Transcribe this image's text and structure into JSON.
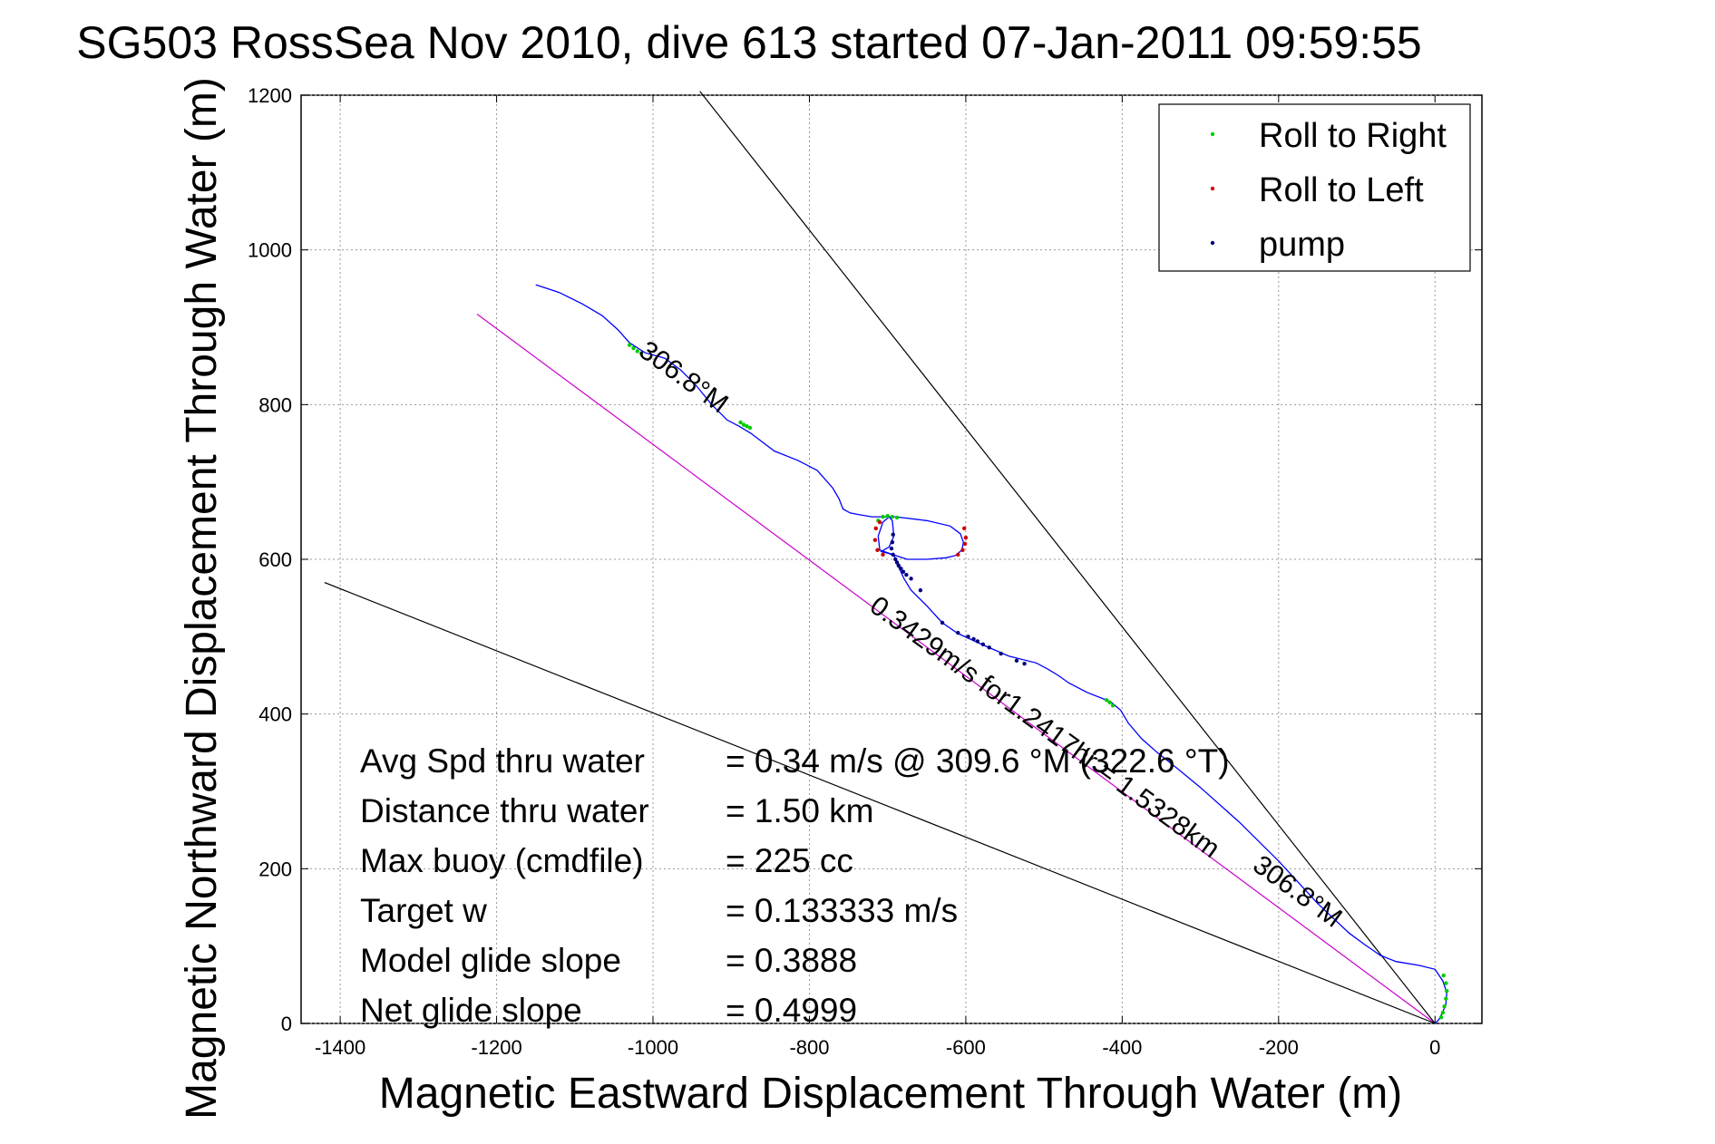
{
  "chart_data": {
    "type": "scatter",
    "title": "SG503 RossSea Nov 2010, dive 613 started 07-Jan-2011 09:59:55",
    "xlabel": "Magnetic Eastward Displacement Through Water (m)",
    "ylabel": "Magnetic Northward Displacement Through Water (m)",
    "xlim": [
      -1450,
      60
    ],
    "ylim": [
      0,
      1200
    ],
    "xticks": [
      -1400,
      -1200,
      -1000,
      -800,
      -600,
      -400,
      -200,
      0
    ],
    "yticks": [
      0,
      200,
      400,
      600,
      800,
      1000,
      1200
    ],
    "grid": true,
    "legend_position": "top-right",
    "legend": [
      {
        "label": "Roll to Right",
        "color": "#00cc00"
      },
      {
        "label": "Roll to Left",
        "color": "#cc0000"
      },
      {
        "label": "pump",
        "color": "#000080"
      }
    ],
    "track": {
      "color": "#0000ff",
      "x": [
        -1150,
        -1120,
        -1090,
        -1065,
        -1045,
        -1030,
        -1010,
        -985,
        -965,
        -945,
        -925,
        -905,
        -890,
        -875,
        -845,
        -815,
        -790,
        -770,
        -762,
        -757,
        -748,
        -738,
        -732,
        -720,
        -705,
        -690,
        -650,
        -620,
        -607,
        -603,
        -605,
        -613,
        -625,
        -650,
        -675,
        -690,
        -710,
        -712,
        -706,
        -698,
        -694,
        -692,
        -698,
        -705,
        -708,
        -700,
        -692,
        -686,
        -679,
        -670,
        -650,
        -630,
        -610,
        -575,
        -545,
        -510,
        -495,
        -482,
        -468,
        -445,
        -425,
        -415,
        -402,
        -392,
        -375,
        -355,
        -330,
        -300,
        -250,
        -200,
        -150,
        -110,
        -90,
        -80,
        -70,
        -50,
        -20,
        0,
        10,
        15,
        14,
        10,
        5,
        0
      ],
      "y": [
        955,
        945,
        930,
        915,
        897,
        880,
        867,
        860,
        845,
        825,
        800,
        780,
        772,
        763,
        740,
        728,
        715,
        692,
        678,
        665,
        660,
        658,
        657,
        655,
        655,
        655,
        650,
        643,
        633,
        622,
        612,
        605,
        602,
        600,
        600,
        605,
        612,
        630,
        648,
        655,
        650,
        630,
        616,
        612,
        610,
        608,
        605,
        590,
        575,
        560,
        540,
        518,
        504,
        488,
        475,
        466,
        458,
        450,
        440,
        428,
        420,
        416,
        405,
        388,
        368,
        350,
        330,
        305,
        260,
        210,
        155,
        117,
        102,
        95,
        88,
        80,
        75,
        70,
        55,
        40,
        25,
        15,
        5,
        0
      ]
    },
    "roll_right_points": {
      "x": [
        -1030,
        -1025,
        -1020,
        -1015,
        -888,
        -884,
        -880,
        -876,
        -712,
        -706,
        -700,
        -694,
        -688,
        -420,
        -416,
        -412,
        11,
        14,
        15,
        14,
        12,
        10,
        8
      ],
      "y": [
        877,
        873,
        869,
        866,
        777,
        774,
        772,
        770,
        650,
        655,
        656,
        655,
        654,
        418,
        415,
        411,
        62,
        52,
        42,
        32,
        22,
        14,
        8
      ]
    },
    "roll_left_points": {
      "x": [
        -710,
        -715,
        -716,
        -713,
        -706,
        -602,
        -600,
        -601,
        -604,
        -610
      ],
      "y": [
        648,
        640,
        625,
        612,
        606,
        640,
        628,
        620,
        612,
        606
      ]
    },
    "pump_points": {
      "x": [
        -693,
        -694,
        -695,
        -693,
        -690,
        -688,
        -686,
        -683,
        -680,
        -676,
        -670,
        -658,
        -630,
        -610,
        -597,
        -590,
        -585,
        -578,
        -570,
        -555,
        -535,
        -525
      ],
      "y": [
        632,
        622,
        614,
        606,
        600,
        596,
        592,
        588,
        584,
        580,
        575,
        560,
        518,
        505,
        500,
        497,
        494,
        490,
        486,
        478,
        469,
        465
      ]
    },
    "reference_lines": [
      {
        "name": "heading-line",
        "color": "#cc00cc",
        "x": [
          0,
          -1225
        ],
        "y": [
          0,
          917
        ]
      },
      {
        "name": "upper-bound-line",
        "color": "#000000",
        "x": [
          0,
          -940
        ],
        "y": [
          0,
          1205
        ]
      },
      {
        "name": "lower-bound-line",
        "color": "#000000",
        "x": [
          0,
          -1420
        ],
        "y": [
          0,
          570
        ]
      }
    ],
    "annotations": [
      {
        "text": "306.8°M",
        "x": -1020,
        "y": 865,
        "rotation": 36
      },
      {
        "text": "0.3429m/s for1.2417hr = 1.5328km",
        "x": -725,
        "y": 535,
        "rotation": 36
      },
      {
        "text": "306.8°M",
        "x": -235,
        "y": 200,
        "rotation": 36
      }
    ],
    "stats": [
      {
        "label": "Avg Spd thru water",
        "value": "=  0.34 m/s @ 309.6 °M (322.6 °T)"
      },
      {
        "label": "Distance thru water",
        "value": "=  1.50 km"
      },
      {
        "label": "Max buoy (cmdfile)",
        "value": "= 225 cc"
      },
      {
        "label": "Target w",
        "value": "= 0.133333 m/s"
      },
      {
        "label": "Model glide slope",
        "value": "= 0.3888"
      },
      {
        "label": "Net glide slope",
        "value": "= 0.4999"
      }
    ]
  }
}
